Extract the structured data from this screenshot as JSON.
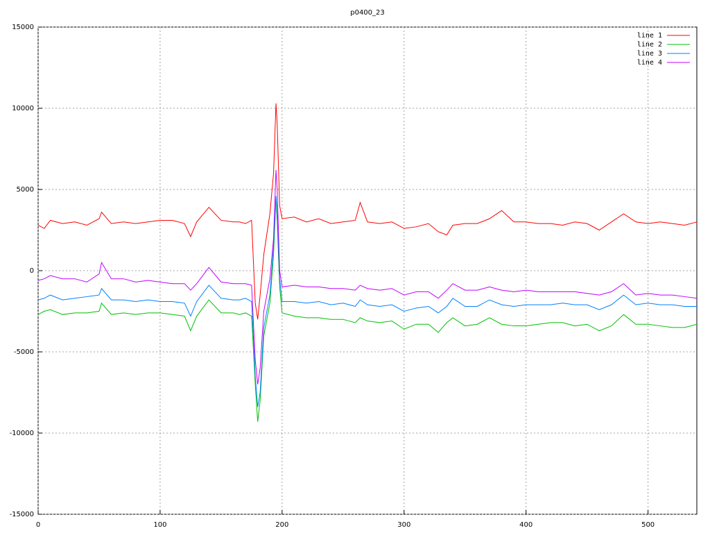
{
  "chart_data": {
    "type": "line",
    "title": "p0400_23",
    "x": [
      0,
      5,
      10,
      20,
      30,
      40,
      50,
      52,
      60,
      70,
      80,
      90,
      100,
      110,
      120,
      125,
      130,
      140,
      150,
      160,
      165,
      170,
      175,
      178,
      180,
      182,
      185,
      190,
      193,
      195,
      196,
      198,
      200,
      210,
      220,
      230,
      240,
      250,
      260,
      264,
      270,
      280,
      290,
      300,
      310,
      320,
      328,
      335,
      340,
      350,
      360,
      370,
      380,
      390,
      400,
      410,
      420,
      430,
      440,
      450,
      460,
      470,
      480,
      490,
      500,
      510,
      520,
      530,
      540
    ],
    "series": [
      {
        "name": "line 1",
        "color": "#ff0000",
        "values": [
          2800,
          2600,
          3100,
          2900,
          3000,
          2800,
          3200,
          3600,
          2900,
          3000,
          2900,
          3000,
          3100,
          3100,
          2900,
          2100,
          3000,
          3900,
          3100,
          3000,
          3000,
          2900,
          3100,
          -2000,
          -3000,
          -1500,
          1000,
          3500,
          6000,
          10300,
          9000,
          4000,
          3200,
          3300,
          3000,
          3200,
          2900,
          3000,
          3100,
          4200,
          3000,
          2900,
          3000,
          2600,
          2700,
          2900,
          2400,
          2200,
          2800,
          2900,
          2900,
          3200,
          3700,
          3000,
          3000,
          2900,
          2900,
          2800,
          3000,
          2900,
          2500,
          3000,
          3500,
          3000,
          2900,
          3000,
          2900,
          2800,
          3000
        ]
      },
      {
        "name": "line 2",
        "color": "#00c000",
        "values": [
          -2700,
          -2500,
          -2400,
          -2700,
          -2600,
          -2600,
          -2500,
          -2000,
          -2700,
          -2600,
          -2700,
          -2600,
          -2600,
          -2700,
          -2800,
          -3700,
          -2800,
          -1800,
          -2600,
          -2600,
          -2700,
          -2600,
          -2800,
          -7000,
          -9300,
          -8000,
          -4000,
          -2000,
          1000,
          4500,
          3000,
          -1000,
          -2600,
          -2800,
          -2900,
          -2900,
          -3000,
          -3000,
          -3200,
          -2900,
          -3100,
          -3200,
          -3100,
          -3600,
          -3300,
          -3300,
          -3800,
          -3200,
          -2900,
          -3400,
          -3300,
          -2900,
          -3300,
          -3400,
          -3400,
          -3300,
          -3200,
          -3200,
          -3400,
          -3300,
          -3700,
          -3400,
          -2700,
          -3300,
          -3300,
          -3400,
          -3500,
          -3500,
          -3300
        ]
      },
      {
        "name": "line 3",
        "color": "#0080ff",
        "values": [
          -1800,
          -1700,
          -1500,
          -1800,
          -1700,
          -1600,
          -1500,
          -1100,
          -1800,
          -1800,
          -1900,
          -1800,
          -1900,
          -1900,
          -2000,
          -2800,
          -1900,
          -900,
          -1700,
          -1800,
          -1800,
          -1700,
          -1900,
          -6500,
          -8400,
          -7500,
          -3500,
          -1500,
          1500,
          4600,
          3500,
          -500,
          -1900,
          -1900,
          -2000,
          -1900,
          -2100,
          -2000,
          -2200,
          -1800,
          -2100,
          -2200,
          -2100,
          -2500,
          -2300,
          -2200,
          -2600,
          -2200,
          -1700,
          -2200,
          -2200,
          -1800,
          -2100,
          -2200,
          -2100,
          -2100,
          -2100,
          -2000,
          -2100,
          -2100,
          -2400,
          -2100,
          -1500,
          -2100,
          -2000,
          -2100,
          -2100,
          -2200,
          -2200
        ]
      },
      {
        "name": "line 4",
        "color": "#c000ff",
        "values": [
          -600,
          -500,
          -300,
          -500,
          -500,
          -700,
          -200,
          500,
          -500,
          -500,
          -700,
          -600,
          -700,
          -800,
          -800,
          -1200,
          -800,
          200,
          -700,
          -800,
          -800,
          -800,
          -900,
          -5500,
          -7000,
          -6000,
          -2500,
          -500,
          2000,
          6200,
          5000,
          0,
          -1000,
          -900,
          -1000,
          -1000,
          -1100,
          -1100,
          -1200,
          -900,
          -1100,
          -1200,
          -1100,
          -1500,
          -1300,
          -1300,
          -1700,
          -1200,
          -800,
          -1200,
          -1200,
          -1000,
          -1200,
          -1300,
          -1200,
          -1300,
          -1300,
          -1300,
          -1300,
          -1400,
          -1500,
          -1300,
          -800,
          -1500,
          -1400,
          -1500,
          -1500,
          -1600,
          -1700
        ]
      }
    ],
    "xlim": [
      0,
      540
    ],
    "ylim": [
      -15000,
      15000
    ],
    "xticks": [
      0,
      100,
      200,
      300,
      400,
      500
    ],
    "yticks": [
      -15000,
      -10000,
      -5000,
      0,
      5000,
      10000,
      15000
    ],
    "grid": true,
    "legend": "top-right"
  }
}
